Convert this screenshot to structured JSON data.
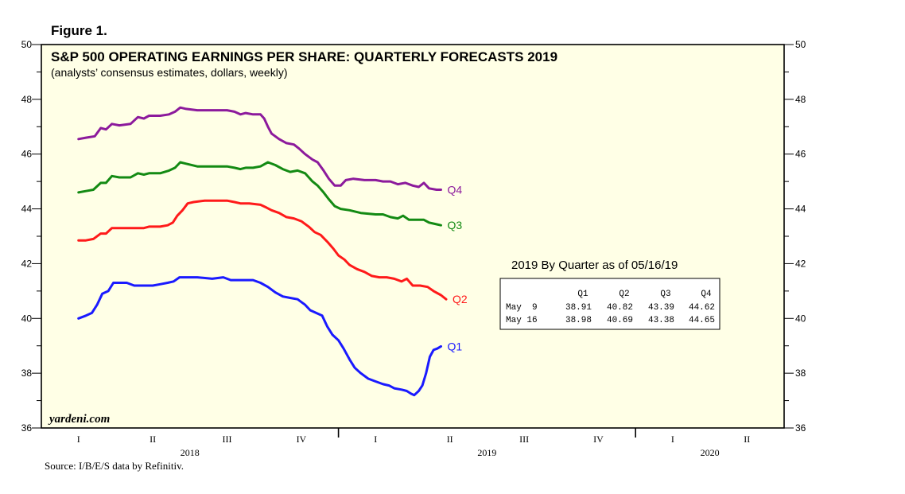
{
  "figure_label": "Figure 1.",
  "source": "Source: I/B/E/S data by Refinitiv.",
  "brand": "yardeni.com",
  "chart_data": {
    "type": "line",
    "title": "S&P 500 OPERATING EARNINGS PER SHARE: QUARTERLY FORECASTS 2019",
    "subtitle": "(analysts’ consensus estimates, dollars, weekly)",
    "ylim": [
      36,
      50
    ],
    "yticks": [
      36,
      38,
      40,
      42,
      44,
      46,
      48,
      50
    ],
    "xlim": [
      0,
      10
    ],
    "quarter_labels": [
      "I",
      "II",
      "III",
      "IV",
      "I",
      "II",
      "III",
      "IV",
      "I",
      "II"
    ],
    "year_labels": [
      {
        "label": "2018",
        "center": 2.0
      },
      {
        "label": "2019",
        "center": 6.0
      },
      {
        "label": "2020",
        "center": 9.0
      }
    ],
    "year_boundaries": [
      4,
      8
    ],
    "colors": {
      "Q1": "#1a1aff",
      "Q2": "#ff1a1a",
      "Q3": "#138a13",
      "Q4": "#8c1a9c"
    },
    "series": [
      {
        "name": "Q4",
        "points": [
          [
            0.5,
            46.55
          ],
          [
            0.6,
            46.6
          ],
          [
            0.72,
            46.65
          ],
          [
            0.8,
            46.95
          ],
          [
            0.87,
            46.9
          ],
          [
            0.95,
            47.1
          ],
          [
            1.05,
            47.05
          ],
          [
            1.2,
            47.1
          ],
          [
            1.3,
            47.35
          ],
          [
            1.38,
            47.3
          ],
          [
            1.45,
            47.4
          ],
          [
            1.6,
            47.4
          ],
          [
            1.72,
            47.45
          ],
          [
            1.8,
            47.55
          ],
          [
            1.87,
            47.7
          ],
          [
            1.95,
            47.65
          ],
          [
            2.1,
            47.6
          ],
          [
            2.3,
            47.6
          ],
          [
            2.5,
            47.6
          ],
          [
            2.6,
            47.55
          ],
          [
            2.68,
            47.45
          ],
          [
            2.75,
            47.5
          ],
          [
            2.85,
            47.45
          ],
          [
            2.95,
            47.45
          ],
          [
            3.0,
            47.3
          ],
          [
            3.05,
            47.0
          ],
          [
            3.1,
            46.75
          ],
          [
            3.2,
            46.55
          ],
          [
            3.3,
            46.4
          ],
          [
            3.4,
            46.35
          ],
          [
            3.47,
            46.2
          ],
          [
            3.55,
            46.0
          ],
          [
            3.65,
            45.8
          ],
          [
            3.72,
            45.7
          ],
          [
            3.8,
            45.4
          ],
          [
            3.87,
            45.1
          ],
          [
            3.95,
            44.85
          ],
          [
            4.03,
            44.85
          ],
          [
            4.1,
            45.05
          ],
          [
            4.2,
            45.1
          ],
          [
            4.35,
            45.05
          ],
          [
            4.5,
            45.05
          ],
          [
            4.6,
            45.0
          ],
          [
            4.7,
            45.0
          ],
          [
            4.8,
            44.9
          ],
          [
            4.9,
            44.95
          ],
          [
            5.0,
            44.85
          ],
          [
            5.08,
            44.8
          ],
          [
            5.15,
            44.95
          ],
          [
            5.22,
            44.75
          ],
          [
            5.32,
            44.7
          ],
          [
            5.38,
            44.7
          ]
        ]
      },
      {
        "name": "Q3",
        "points": [
          [
            0.5,
            44.6
          ],
          [
            0.6,
            44.65
          ],
          [
            0.7,
            44.7
          ],
          [
            0.8,
            44.95
          ],
          [
            0.87,
            44.95
          ],
          [
            0.95,
            45.2
          ],
          [
            1.05,
            45.15
          ],
          [
            1.2,
            45.15
          ],
          [
            1.3,
            45.3
          ],
          [
            1.38,
            45.25
          ],
          [
            1.45,
            45.3
          ],
          [
            1.6,
            45.3
          ],
          [
            1.72,
            45.4
          ],
          [
            1.8,
            45.5
          ],
          [
            1.87,
            45.7
          ],
          [
            1.95,
            45.65
          ],
          [
            2.1,
            45.55
          ],
          [
            2.3,
            45.55
          ],
          [
            2.5,
            45.55
          ],
          [
            2.6,
            45.5
          ],
          [
            2.68,
            45.45
          ],
          [
            2.75,
            45.5
          ],
          [
            2.85,
            45.5
          ],
          [
            2.95,
            45.55
          ],
          [
            3.05,
            45.7
          ],
          [
            3.15,
            45.6
          ],
          [
            3.25,
            45.45
          ],
          [
            3.35,
            45.35
          ],
          [
            3.45,
            45.4
          ],
          [
            3.55,
            45.3
          ],
          [
            3.65,
            45.0
          ],
          [
            3.72,
            44.85
          ],
          [
            3.8,
            44.6
          ],
          [
            3.87,
            44.35
          ],
          [
            3.95,
            44.1
          ],
          [
            4.03,
            44.0
          ],
          [
            4.15,
            43.95
          ],
          [
            4.3,
            43.85
          ],
          [
            4.5,
            43.8
          ],
          [
            4.6,
            43.8
          ],
          [
            4.7,
            43.7
          ],
          [
            4.8,
            43.65
          ],
          [
            4.87,
            43.75
          ],
          [
            4.95,
            43.6
          ],
          [
            5.05,
            43.6
          ],
          [
            5.15,
            43.6
          ],
          [
            5.22,
            43.5
          ],
          [
            5.3,
            43.45
          ],
          [
            5.38,
            43.4
          ]
        ]
      },
      {
        "name": "Q2",
        "points": [
          [
            0.5,
            42.85
          ],
          [
            0.6,
            42.85
          ],
          [
            0.7,
            42.9
          ],
          [
            0.8,
            43.1
          ],
          [
            0.87,
            43.1
          ],
          [
            0.95,
            43.3
          ],
          [
            1.05,
            43.3
          ],
          [
            1.2,
            43.3
          ],
          [
            1.3,
            43.3
          ],
          [
            1.38,
            43.3
          ],
          [
            1.45,
            43.35
          ],
          [
            1.6,
            43.35
          ],
          [
            1.7,
            43.4
          ],
          [
            1.77,
            43.5
          ],
          [
            1.83,
            43.75
          ],
          [
            1.9,
            43.95
          ],
          [
            1.97,
            44.2
          ],
          [
            2.05,
            44.25
          ],
          [
            2.2,
            44.3
          ],
          [
            2.35,
            44.3
          ],
          [
            2.5,
            44.3
          ],
          [
            2.6,
            44.25
          ],
          [
            2.68,
            44.2
          ],
          [
            2.8,
            44.2
          ],
          [
            2.95,
            44.15
          ],
          [
            3.03,
            44.05
          ],
          [
            3.1,
            43.95
          ],
          [
            3.2,
            43.85
          ],
          [
            3.3,
            43.7
          ],
          [
            3.4,
            43.65
          ],
          [
            3.5,
            43.55
          ],
          [
            3.6,
            43.35
          ],
          [
            3.68,
            43.15
          ],
          [
            3.76,
            43.05
          ],
          [
            3.85,
            42.8
          ],
          [
            3.93,
            42.55
          ],
          [
            4.0,
            42.3
          ],
          [
            4.08,
            42.15
          ],
          [
            4.15,
            41.95
          ],
          [
            4.25,
            41.8
          ],
          [
            4.35,
            41.7
          ],
          [
            4.45,
            41.55
          ],
          [
            4.55,
            41.5
          ],
          [
            4.65,
            41.5
          ],
          [
            4.75,
            41.45
          ],
          [
            4.85,
            41.35
          ],
          [
            4.92,
            41.45
          ],
          [
            5.0,
            41.2
          ],
          [
            5.1,
            41.2
          ],
          [
            5.2,
            41.15
          ],
          [
            5.28,
            41.0
          ],
          [
            5.38,
            40.85
          ],
          [
            5.45,
            40.7
          ]
        ]
      },
      {
        "name": "Q1",
        "points": [
          [
            0.5,
            40.0
          ],
          [
            0.6,
            40.1
          ],
          [
            0.68,
            40.2
          ],
          [
            0.75,
            40.5
          ],
          [
            0.82,
            40.9
          ],
          [
            0.9,
            41.0
          ],
          [
            0.97,
            41.3
          ],
          [
            1.05,
            41.3
          ],
          [
            1.15,
            41.3
          ],
          [
            1.25,
            41.2
          ],
          [
            1.35,
            41.2
          ],
          [
            1.5,
            41.2
          ],
          [
            1.6,
            41.25
          ],
          [
            1.7,
            41.3
          ],
          [
            1.78,
            41.35
          ],
          [
            1.86,
            41.5
          ],
          [
            1.95,
            41.5
          ],
          [
            2.1,
            41.5
          ],
          [
            2.3,
            41.45
          ],
          [
            2.45,
            41.5
          ],
          [
            2.55,
            41.4
          ],
          [
            2.7,
            41.4
          ],
          [
            2.85,
            41.4
          ],
          [
            2.95,
            41.3
          ],
          [
            3.05,
            41.15
          ],
          [
            3.15,
            40.95
          ],
          [
            3.25,
            40.8
          ],
          [
            3.35,
            40.75
          ],
          [
            3.45,
            40.7
          ],
          [
            3.55,
            40.5
          ],
          [
            3.62,
            40.3
          ],
          [
            3.7,
            40.2
          ],
          [
            3.78,
            40.1
          ],
          [
            3.85,
            39.7
          ],
          [
            3.92,
            39.4
          ],
          [
            4.0,
            39.2
          ],
          [
            4.07,
            38.9
          ],
          [
            4.15,
            38.5
          ],
          [
            4.22,
            38.2
          ],
          [
            4.3,
            38.0
          ],
          [
            4.4,
            37.8
          ],
          [
            4.5,
            37.7
          ],
          [
            4.6,
            37.6
          ],
          [
            4.68,
            37.55
          ],
          [
            4.75,
            37.45
          ],
          [
            4.85,
            37.4
          ],
          [
            4.92,
            37.35
          ],
          [
            4.98,
            37.25
          ],
          [
            5.02,
            37.2
          ],
          [
            5.08,
            37.35
          ],
          [
            5.13,
            37.55
          ],
          [
            5.18,
            38.0
          ],
          [
            5.23,
            38.6
          ],
          [
            5.28,
            38.85
          ],
          [
            5.33,
            38.9
          ],
          [
            5.38,
            38.98
          ]
        ]
      }
    ],
    "table": {
      "title": "2019 By Quarter as of 05/16/19",
      "columns": [
        "Q1",
        "Q2",
        "Q3",
        "Q4"
      ],
      "rows": [
        {
          "label": "May  9",
          "values": [
            "38.91",
            "40.82",
            "43.39",
            "44.62"
          ]
        },
        {
          "label": "May 16",
          "values": [
            "38.98",
            "40.69",
            "43.38",
            "44.65"
          ]
        }
      ]
    }
  }
}
